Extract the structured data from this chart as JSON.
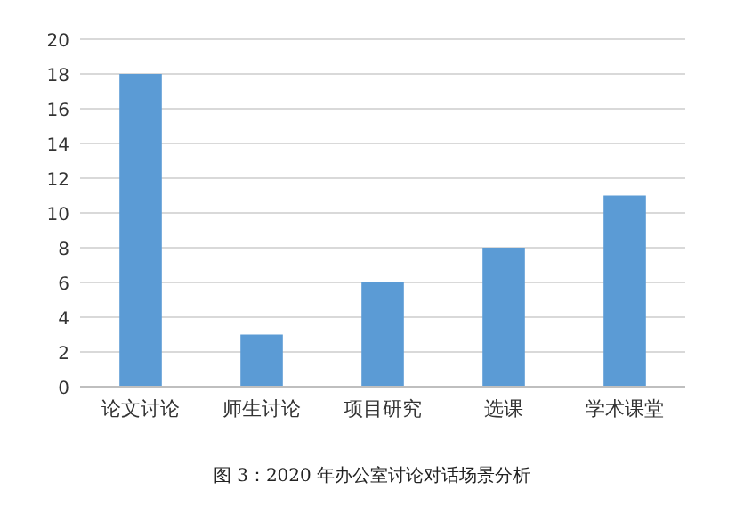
{
  "chart_data": {
    "type": "bar",
    "annotations": [
      "图 3：2020 年办公室讨论对话场景分析"
    ],
    "categories": [
      "论文讨论",
      "师生讨论",
      "项目研究",
      "选课",
      "学术课堂"
    ],
    "values": [
      18,
      3,
      6,
      8,
      11
    ],
    "color": "#5b9bd5",
    "ylim": [
      0,
      20
    ],
    "yticks": [
      0,
      2,
      4,
      6,
      8,
      10,
      12,
      14,
      16,
      18,
      20
    ],
    "grid": "y"
  }
}
